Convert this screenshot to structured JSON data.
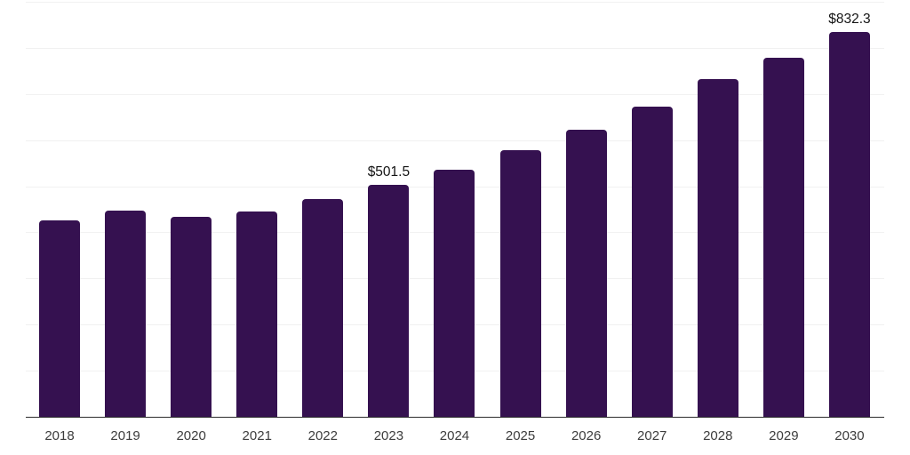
{
  "chart_data": {
    "type": "bar",
    "title": "",
    "xlabel": "",
    "ylabel": "",
    "categories": [
      "2018",
      "2019",
      "2020",
      "2021",
      "2022",
      "2023",
      "2024",
      "2025",
      "2026",
      "2027",
      "2028",
      "2029",
      "2030"
    ],
    "values": [
      425.0,
      445.5,
      432.0,
      443.5,
      470.5,
      501.5,
      535.0,
      576.0,
      621.5,
      671.5,
      730.0,
      776.5,
      832.3
    ],
    "value_labels": [
      "",
      "",
      "",
      "",
      "",
      "$501.5",
      "",
      "",
      "",
      "",
      "",
      "",
      "$832.3"
    ],
    "ylim": [
      0,
      900
    ],
    "grid_step": 100,
    "grid_on": true,
    "legend": "none",
    "colors": {
      "bar": "#351150",
      "axis_line": "#2b2b2b",
      "gridline": "#f1f1f1",
      "year_label": "#3d3d3d",
      "value_label": "#141414",
      "background": "#ffffff"
    }
  }
}
